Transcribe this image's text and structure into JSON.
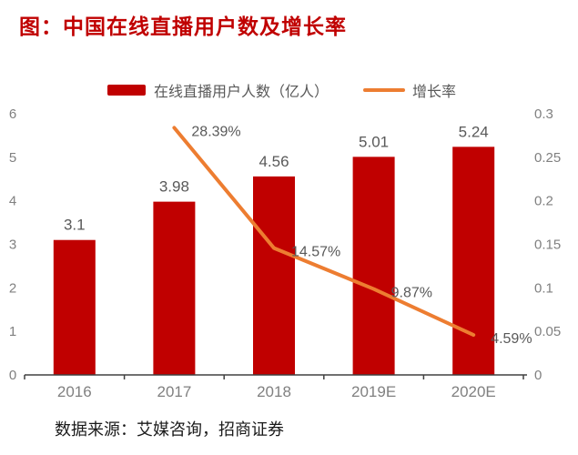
{
  "title": "图：中国在线直播用户数及增长率",
  "source": "数据来源：艾媒咨询，招商证券",
  "colors": {
    "title": "#C00000",
    "bar": "#C00000",
    "line": "#ED7D31",
    "axis": "#404040",
    "tick_label": "#808080",
    "data_label": "#595959"
  },
  "legend": {
    "users_label": "在线直播用户人数（亿人）",
    "growth_label": "增长率"
  },
  "chart_data": {
    "type": "bar+line",
    "categories": [
      "2016",
      "2017",
      "2018",
      "2019E",
      "2020E"
    ],
    "series": [
      {
        "name": "在线直播用户人数（亿人）",
        "type": "bar",
        "axis": "left",
        "values": [
          3.1,
          3.98,
          4.56,
          5.01,
          5.24
        ],
        "labels": [
          "3.1",
          "3.98",
          "4.56",
          "5.01",
          "5.24"
        ]
      },
      {
        "name": "增长率",
        "type": "line",
        "axis": "right",
        "values": [
          null,
          0.2839,
          0.1457,
          0.0987,
          0.0459
        ],
        "labels": [
          null,
          "28.39%",
          "14.57%",
          "9.87%",
          "4.59%"
        ]
      }
    ],
    "left_axis": {
      "min": 0,
      "max": 6,
      "ticks": [
        "0",
        "1",
        "2",
        "3",
        "4",
        "5",
        "6"
      ]
    },
    "right_axis": {
      "min": 0,
      "max": 0.3,
      "ticks": [
        "0",
        "0.05",
        "0.1",
        "0.15",
        "0.2",
        "0.25",
        "0.3"
      ]
    },
    "grid": false,
    "legend_position": "top"
  }
}
